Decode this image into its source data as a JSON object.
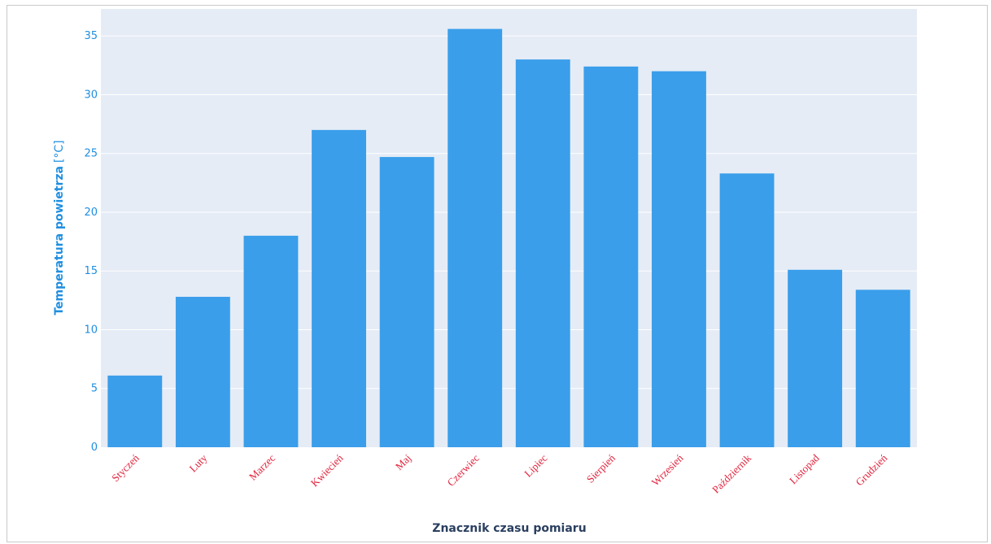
{
  "chart_data": {
    "type": "bar",
    "categories": [
      "Styczeń",
      "Luty",
      "Marzec",
      "Kwiecień",
      "Maj",
      "Czerwiec",
      "Lipiec",
      "Sierpień",
      "Wrzesień",
      "Październik",
      "Listopad",
      "Grudzień"
    ],
    "values": [
      6.1,
      12.8,
      18.0,
      27.0,
      24.7,
      35.6,
      33.0,
      32.4,
      32.0,
      23.3,
      15.1,
      13.4
    ],
    "xlabel": "Znacznik czasu pomiaru",
    "ylabel": "Temperatura powietrza",
    "ylabel_unit": "[°C]",
    "ylim": [
      0,
      37.3
    ],
    "yticks": [
      0,
      5,
      10,
      15,
      20,
      25,
      30,
      35
    ],
    "grid": true,
    "colors": {
      "bar": "#3a9eea",
      "plot_background": "#e5ecf6",
      "grid": "#ffffff",
      "ytick_text": "#1f8fe0",
      "xtick_text": "#e0213b",
      "xlabel_text": "#2a3f5f"
    }
  }
}
